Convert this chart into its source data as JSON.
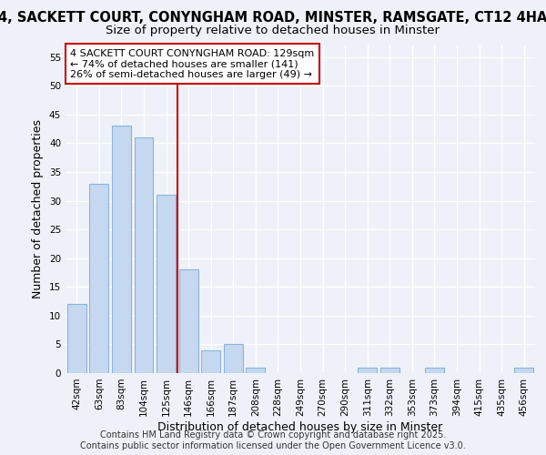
{
  "title_line1": "4, SACKETT COURT, CONYNGHAM ROAD, MINSTER, RAMSGATE, CT12 4HA",
  "title_line2": "Size of property relative to detached houses in Minster",
  "xlabel": "Distribution of detached houses by size in Minster",
  "ylabel": "Number of detached properties",
  "categories": [
    "42sqm",
    "63sqm",
    "83sqm",
    "104sqm",
    "125sqm",
    "146sqm",
    "166sqm",
    "187sqm",
    "208sqm",
    "228sqm",
    "249sqm",
    "270sqm",
    "290sqm",
    "311sqm",
    "332sqm",
    "353sqm",
    "373sqm",
    "394sqm",
    "415sqm",
    "435sqm",
    "456sqm"
  ],
  "values": [
    12,
    33,
    43,
    41,
    31,
    18,
    4,
    5,
    1,
    0,
    0,
    0,
    0,
    1,
    1,
    0,
    1,
    0,
    0,
    0,
    1
  ],
  "bar_color": "#c5d8f0",
  "bar_edge_color": "#8ab4d8",
  "vline_x": 4.5,
  "vline_color": "#cc0000",
  "annotation_text": "4 SACKETT COURT CONYNGHAM ROAD: 129sqm\n← 74% of detached houses are smaller (141)\n26% of semi-detached houses are larger (49) →",
  "annotation_box_color": "#ffffff",
  "annotation_box_edge": "#cc0000",
  "ylim": [
    0,
    57
  ],
  "yticks": [
    0,
    5,
    10,
    15,
    20,
    25,
    30,
    35,
    40,
    45,
    50,
    55
  ],
  "background_color": "#eef2f8",
  "grid_color": "#ffffff",
  "footer_text": "Contains HM Land Registry data © Crown copyright and database right 2025.\nContains public sector information licensed under the Open Government Licence v3.0.",
  "title_fontsize": 10.5,
  "subtitle_fontsize": 9.5,
  "axis_label_fontsize": 9,
  "tick_fontsize": 7.5,
  "annotation_fontsize": 8,
  "footer_fontsize": 7
}
